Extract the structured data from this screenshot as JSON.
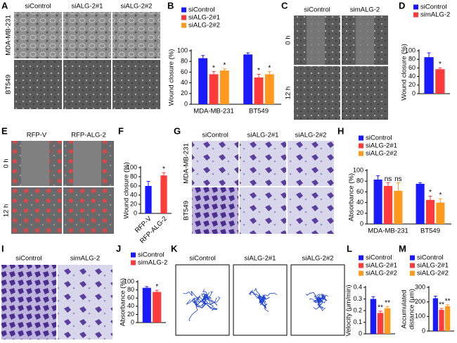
{
  "panel_labels": [
    "A",
    "B",
    "C",
    "D",
    "E",
    "F",
    "G",
    "H",
    "I",
    "J",
    "K",
    "L",
    "M"
  ],
  "images": {
    "A": {
      "columns": [
        "siControl",
        "siALG-2#1",
        "siALG-2#2"
      ],
      "rows": [
        "MDA-MB-231",
        "BT549"
      ]
    },
    "C": {
      "columns": [
        "siControl",
        "simALG-2"
      ],
      "rows": [
        "0 h",
        "12 h"
      ]
    },
    "E": {
      "columns": [
        "RFP-V",
        "RFP-ALG-2"
      ],
      "rows": [
        "0 h",
        "12 h"
      ]
    },
    "G": {
      "columns": [
        "siControl",
        "siALG-2#1",
        "siALG-2#2"
      ],
      "rows": [
        "MDA-MB-231",
        "BT549"
      ]
    },
    "I": {
      "columns": [
        "siControl",
        "simALG-2"
      ]
    },
    "K": {
      "columns": [
        "siControl",
        "siALG-2#1",
        "siALG-2#2"
      ]
    }
  },
  "chart_data": [
    {
      "type": "bar",
      "ylabel": "Wound closure (%)",
      "categories": [
        "MDA-MB-231",
        "BT549"
      ],
      "ylim": [
        0,
        100
      ],
      "yticks": [
        0,
        20,
        40,
        60,
        80,
        100
      ],
      "legend": "top-left",
      "series": [
        {
          "name": "siControl",
          "color": "#1a1aff",
          "values": [
            86,
            93
          ],
          "errors": [
            5,
            3
          ]
        },
        {
          "name": "siALG-2#1",
          "color": "#ff3b3b",
          "values": [
            56,
            50
          ],
          "errors": [
            5,
            6
          ],
          "annotations": [
            "*",
            "*"
          ]
        },
        {
          "name": "siALG-2#2",
          "color": "#ff9a1f",
          "values": [
            63,
            56
          ],
          "errors": [
            3,
            5
          ],
          "annotations": [
            "*",
            "*"
          ]
        }
      ]
    },
    {
      "type": "bar",
      "ylabel": "Wound closure (%)",
      "categories": [
        null
      ],
      "ylim": [
        0,
        100
      ],
      "yticks": [
        0,
        20,
        40,
        60,
        80,
        100
      ],
      "legend": "top-left",
      "series": [
        {
          "name": "siControl",
          "color": "#1a1aff",
          "values": [
            85
          ],
          "errors": [
            10
          ]
        },
        {
          "name": "simALG-2",
          "color": "#ff3b3b",
          "values": [
            57
          ],
          "errors": [
            3
          ],
          "annotations": [
            "*"
          ]
        }
      ]
    },
    {
      "type": "bar",
      "ylabel": "Wound closure (%)",
      "categories": [
        "RFP-V",
        "RFP-ALG-2"
      ],
      "values": [
        60,
        83
      ],
      "errors": [
        10,
        6
      ],
      "colors": [
        "#1a1aff",
        "#ff3b3b"
      ],
      "annotations": [
        null,
        "*"
      ],
      "ylim": [
        0,
        100
      ],
      "yticks": [
        0,
        20,
        40,
        60,
        80,
        100
      ]
    },
    {
      "type": "bar",
      "ylabel": "Absorbance (%)",
      "categories": [
        "MDA-MB-231",
        "BT549"
      ],
      "ylim": [
        0,
        100
      ],
      "yticks": [
        0,
        20,
        40,
        60,
        80,
        100
      ],
      "legend": "top-left",
      "series": [
        {
          "name": "siControl",
          "color": "#1a1aff",
          "values": [
            83,
            75
          ],
          "errors": [
            7,
            2
          ]
        },
        {
          "name": "siALG-2#1",
          "color": "#ff3b3b",
          "values": [
            71,
            45
          ],
          "errors": [
            6,
            7
          ],
          "annotations": [
            "ns",
            "*"
          ]
        },
        {
          "name": "siALG-2#2",
          "color": "#ff9a1f",
          "values": [
            62,
            40
          ],
          "errors": [
            15,
            7
          ],
          "annotations": [
            "ns",
            "*"
          ]
        }
      ]
    },
    {
      "type": "bar",
      "ylabel": "Absorbance (%)",
      "categories": [
        null
      ],
      "ylim": [
        0,
        100
      ],
      "yticks": [
        0,
        20,
        40,
        60,
        80,
        100
      ],
      "legend": "top-left",
      "series": [
        {
          "name": "siControl",
          "color": "#1a1aff",
          "values": [
            85
          ],
          "errors": [
            3
          ]
        },
        {
          "name": "simALG-2",
          "color": "#ff3b3b",
          "values": [
            75
          ],
          "errors": [
            4
          ],
          "annotations": [
            "*"
          ]
        }
      ]
    },
    {
      "type": "bar",
      "ylabel": "Velocity (μm/min)",
      "categories": [
        null
      ],
      "ylim": [
        0,
        0.4
      ],
      "yticks": [
        0,
        0.1,
        0.2,
        0.3,
        0.4
      ],
      "legend": "top-left",
      "series": [
        {
          "name": "siControl",
          "color": "#1a1aff",
          "values": [
            0.3
          ],
          "errors": [
            0.02
          ]
        },
        {
          "name": "siALG-2#1",
          "color": "#ff3b3b",
          "values": [
            0.18
          ],
          "errors": [
            0.015
          ],
          "annotations": [
            "**"
          ]
        },
        {
          "name": "siALG-2#2",
          "color": "#ff9a1f",
          "values": [
            0.22
          ],
          "errors": [
            0.015
          ],
          "annotations": [
            "**"
          ]
        }
      ]
    },
    {
      "type": "bar",
      "ylabel": [
        "Accumulated",
        "distance (μm)"
      ],
      "categories": [
        null
      ],
      "ylim": [
        0,
        300
      ],
      "yticks": [
        0,
        100,
        200,
        300
      ],
      "legend": "top-left",
      "series": [
        {
          "name": "siControl",
          "color": "#1a1aff",
          "values": [
            225
          ],
          "errors": [
            15
          ]
        },
        {
          "name": "siALG-2#1",
          "color": "#ff3b3b",
          "values": [
            145
          ],
          "errors": [
            10
          ],
          "annotations": [
            "**"
          ]
        },
        {
          "name": "siALG-2#2",
          "color": "#ff9a1f",
          "values": [
            170
          ],
          "errors": [
            10
          ],
          "annotations": [
            "**"
          ]
        }
      ]
    }
  ]
}
